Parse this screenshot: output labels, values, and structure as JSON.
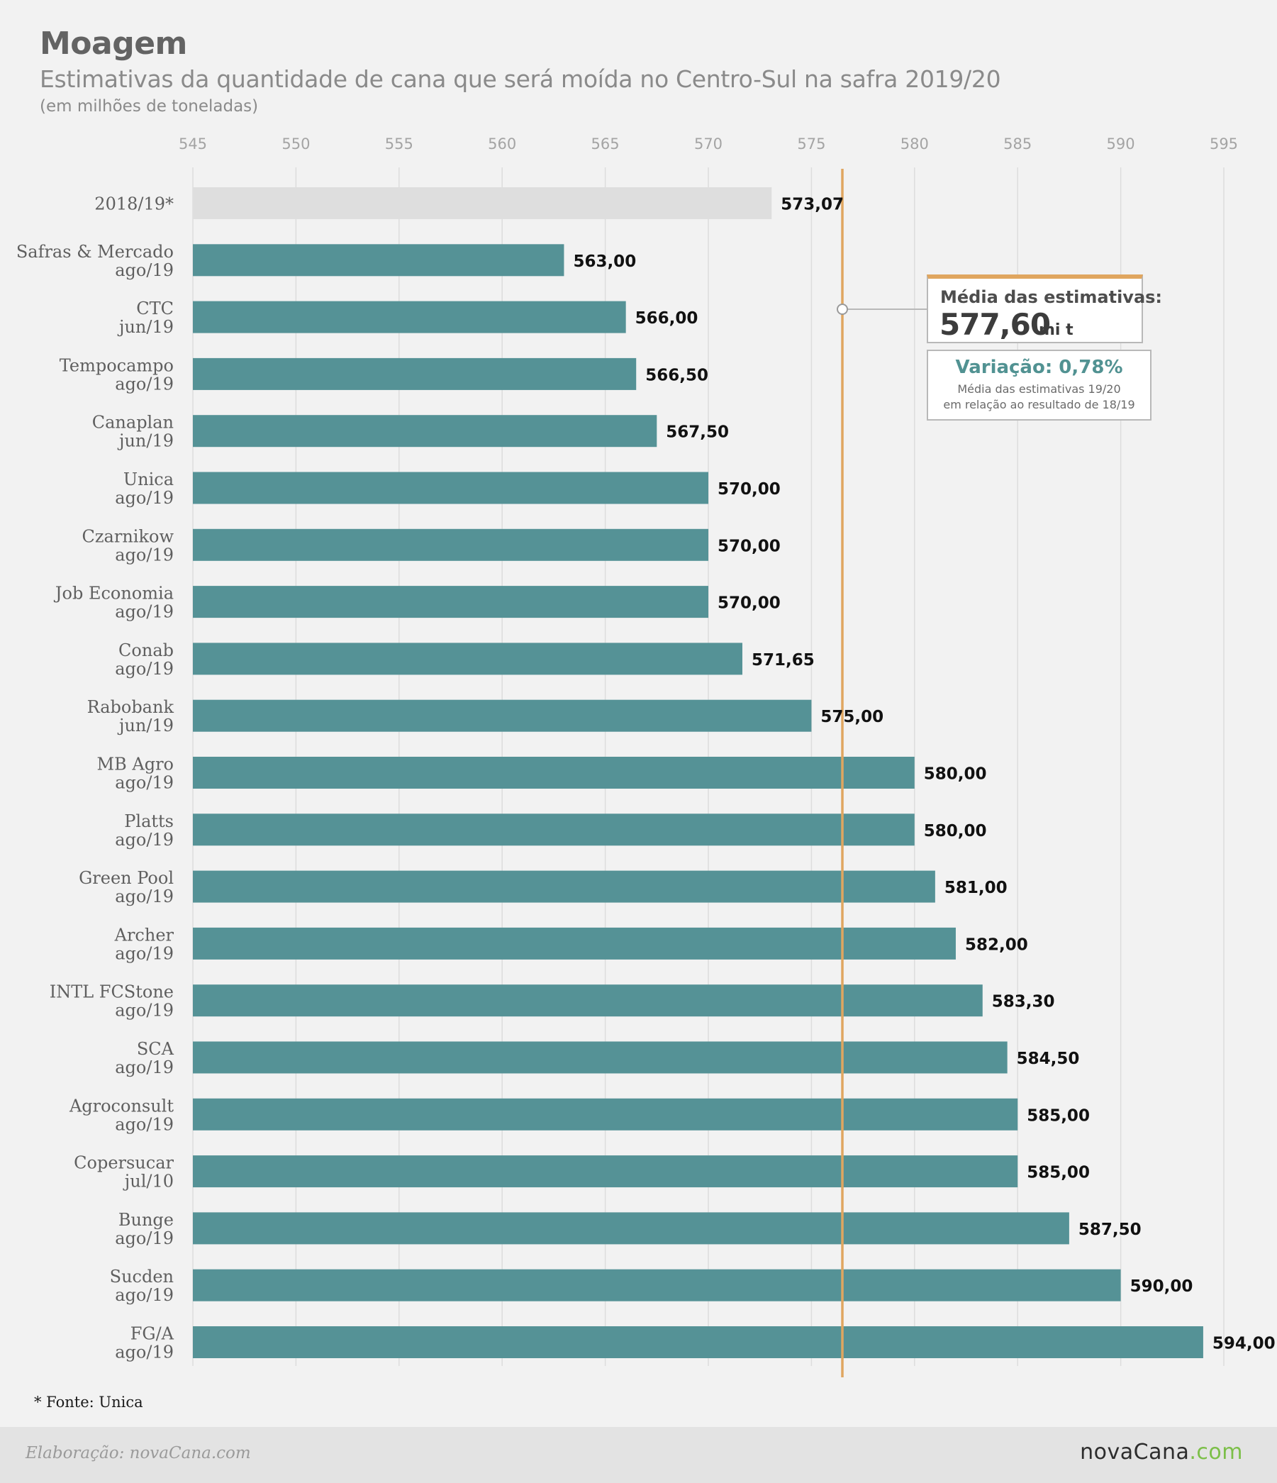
{
  "title": "Moagem",
  "subtitle": "Estimativas da quantidade de cana que será moída no Centro-Sul na safra 2019/20",
  "unit_note": "(em milhões de toneladas)",
  "chart_data": {
    "type": "bar",
    "orientation": "horizontal",
    "xlim": [
      545,
      595
    ],
    "ticks": [
      545,
      550,
      555,
      560,
      565,
      570,
      575,
      580,
      585,
      590,
      595
    ],
    "tick_labels": [
      "545",
      "550",
      "555",
      "560",
      "565",
      "570",
      "575",
      "580",
      "585",
      "590",
      "595"
    ],
    "grid": true,
    "reference_line": 576.5,
    "rows": [
      {
        "name": "2018/19*",
        "date": "",
        "value": 573.07,
        "label": "573,07",
        "highlight": true
      },
      {
        "name": "Safras & Mercado",
        "date": "ago/19",
        "value": 563.0,
        "label": "563,00"
      },
      {
        "name": "CTC",
        "date": "jun/19",
        "value": 566.0,
        "label": "566,00"
      },
      {
        "name": "Tempocampo",
        "date": "ago/19",
        "value": 566.5,
        "label": "566,50"
      },
      {
        "name": "Canaplan",
        "date": "jun/19",
        "value": 567.5,
        "label": "567,50"
      },
      {
        "name": "Unica",
        "date": "ago/19",
        "value": 570.0,
        "label": "570,00"
      },
      {
        "name": "Czarnikow",
        "date": "ago/19",
        "value": 570.0,
        "label": "570,00"
      },
      {
        "name": "Job Economia",
        "date": "ago/19",
        "value": 570.0,
        "label": "570,00"
      },
      {
        "name": "Conab",
        "date": "ago/19",
        "value": 571.65,
        "label": "571,65"
      },
      {
        "name": "Rabobank",
        "date": "jun/19",
        "value": 575.0,
        "label": "575,00"
      },
      {
        "name": "MB Agro",
        "date": "ago/19",
        "value": 580.0,
        "label": "580,00"
      },
      {
        "name": "Platts",
        "date": "ago/19",
        "value": 580.0,
        "label": "580,00"
      },
      {
        "name": "Green Pool",
        "date": "ago/19",
        "value": 581.0,
        "label": "581,00"
      },
      {
        "name": "Archer",
        "date": "ago/19",
        "value": 582.0,
        "label": "582,00"
      },
      {
        "name": "INTL FCStone",
        "date": "ago/19",
        "value": 583.3,
        "label": "583,30"
      },
      {
        "name": "SCA",
        "date": "ago/19",
        "value": 584.5,
        "label": "584,50"
      },
      {
        "name": "Agroconsult",
        "date": "ago/19",
        "value": 585.0,
        "label": "585,00"
      },
      {
        "name": "Copersucar",
        "date": "jul/10",
        "value": 585.0,
        "label": "585,00"
      },
      {
        "name": "Bunge",
        "date": "ago/19",
        "value": 587.5,
        "label": "587,50"
      },
      {
        "name": "Sucden",
        "date": "ago/19",
        "value": 590.0,
        "label": "590,00"
      },
      {
        "name": "FG/A",
        "date": "ago/19",
        "value": 594.0,
        "label": "594,00"
      }
    ]
  },
  "colors": {
    "bar": "#559296",
    "bar_highlight": "#dedede",
    "reference_line": "#e0a660",
    "grid": "#dddddd"
  },
  "average_box": {
    "label": "Média das estimativas:",
    "value": "577,60",
    "unit": "mi t"
  },
  "variation_box": {
    "label": "Variação: 0,78%",
    "desc1": "Média das estimativas 19/20",
    "desc2": "em relação ao resultado de 18/19"
  },
  "footnote": "* Fonte: Unica",
  "footer": {
    "credit": "Elaboração: novaCana.com",
    "brand_main": "novaCana",
    "brand_tld": ".com"
  }
}
